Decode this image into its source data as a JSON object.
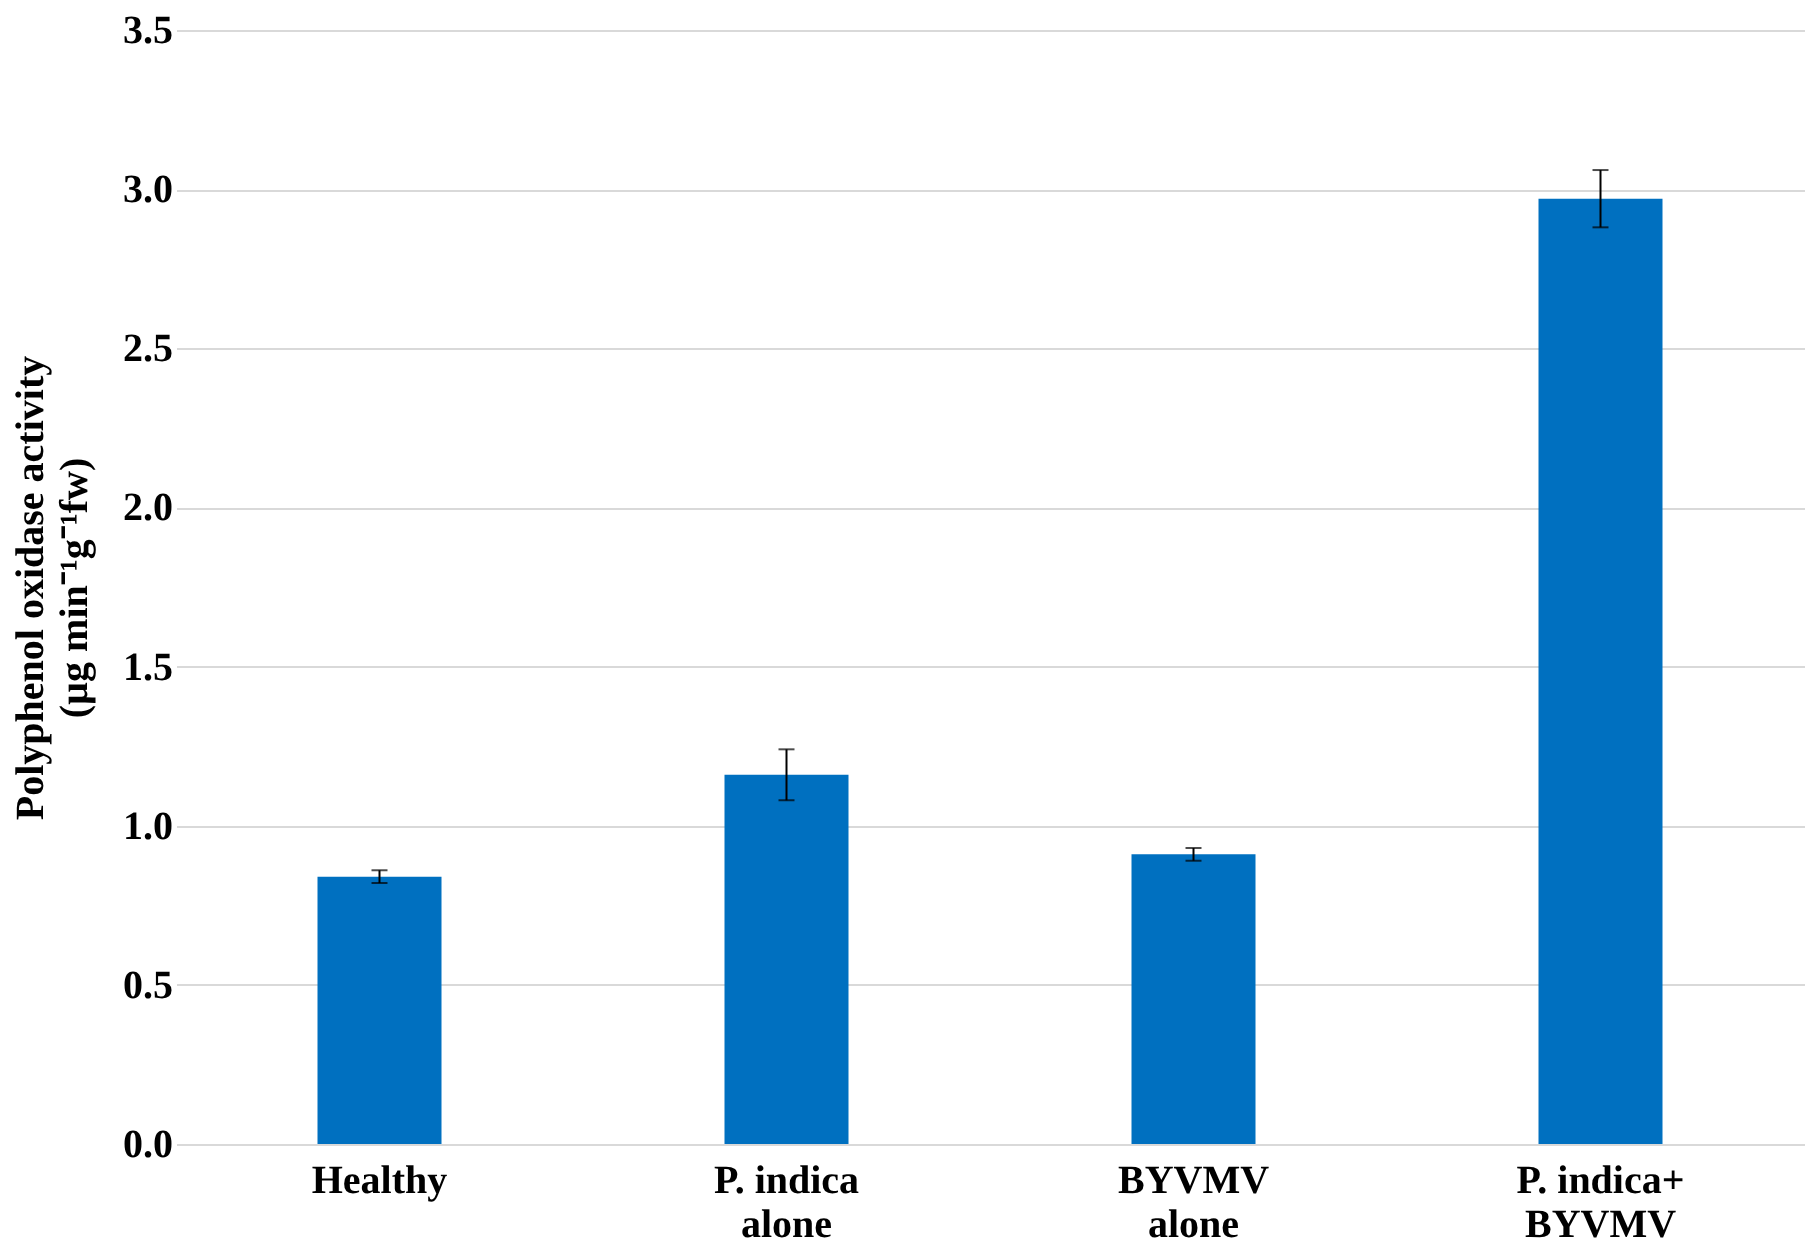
{
  "chart_data": {
    "type": "bar",
    "ylabel": "Polyphenol oxidase activity\n(µg min⁻¹g⁻¹fw)",
    "categories": [
      "Healthy",
      "P. indica\nalone",
      "BYVMV\nalone",
      "P. indica+\nBYVMV"
    ],
    "values": [
      0.84,
      1.16,
      0.91,
      2.97
    ],
    "errors": [
      0.02,
      0.08,
      0.02,
      0.09
    ],
    "color": "#0070c0",
    "ylim": [
      0,
      3.5
    ],
    "yticks": [
      {
        "value": 0,
        "label": "0.0"
      },
      {
        "value": 0.5,
        "label": "0.5"
      },
      {
        "value": 1,
        "label": "1.0"
      },
      {
        "value": 1.5,
        "label": "1.5"
      },
      {
        "value": 2,
        "label": "2.0"
      },
      {
        "value": 2.5,
        "label": "2.5"
      },
      {
        "value": 3,
        "label": "3.0"
      },
      {
        "value": 3.5,
        "label": "3.5"
      }
    ],
    "grid": "y"
  }
}
